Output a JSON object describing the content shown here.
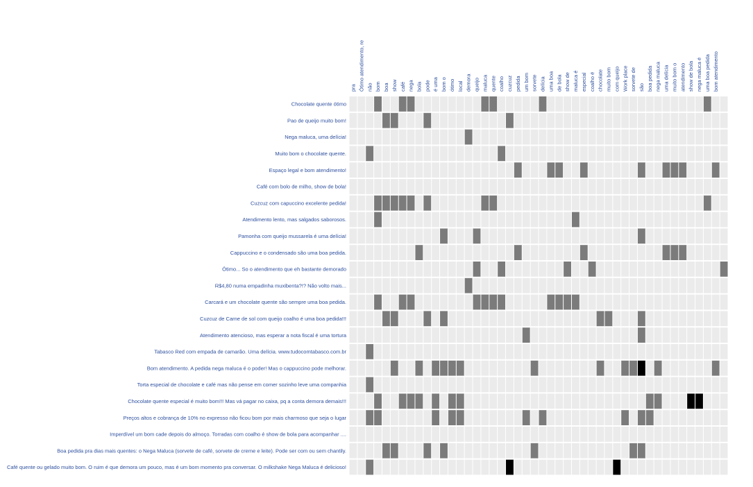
{
  "chart_data": {
    "type": "heatmap",
    "grid": true,
    "fill_colors": {
      "0": "#ebebeb",
      "1": "#7b7b7b",
      "2": "#000000"
    },
    "label_color": "#2d4f9e",
    "columns": [
      "pra",
      "Ótimo atendimento, re",
      "não",
      "bom",
      "boa",
      "show",
      "café",
      "nega",
      "bola",
      "pode",
      "é uma",
      "bom o",
      "ótimo",
      "local",
      "demora",
      "queijo",
      "maluca",
      "quente",
      "coalho",
      "cuzcuz",
      "pedida",
      "um bom",
      "sorvete",
      "delícia",
      "uma boa",
      "de bola",
      "show de",
      "maluca é",
      "especial",
      "coalho é",
      "chocolate",
      "muito bom",
      "com queijo",
      "Work place",
      "sorvete de",
      "são",
      "boa pedida",
      "nega maluca",
      "uma delícia",
      "muito bom o",
      "atendimento",
      "show de bola",
      "nega maluca é",
      "uma boa pedida",
      "bom atendimento",
      ""
    ],
    "rows": [
      {
        "label": "Chocolate quente ótimo",
        "hits": [
          [
            3,
            1
          ],
          [
            6,
            1
          ],
          [
            7,
            1
          ],
          [
            16,
            1
          ],
          [
            17,
            1
          ],
          [
            23,
            1
          ],
          [
            43,
            1
          ]
        ]
      },
      {
        "label": "Pao de queijo muito bom!",
        "hits": [
          [
            4,
            1
          ],
          [
            5,
            1
          ],
          [
            9,
            1
          ],
          [
            19,
            1
          ]
        ]
      },
      {
        "label": "Nega maluca, uma delícia!",
        "hits": [
          [
            14,
            1
          ]
        ]
      },
      {
        "label": "Muito bom o chocolate quente.",
        "hits": [
          [
            2,
            1
          ],
          [
            18,
            1
          ]
        ]
      },
      {
        "label": "Espaço legal e bom atendimento!",
        "hits": [
          [
            20,
            1
          ],
          [
            24,
            1
          ],
          [
            25,
            1
          ],
          [
            28,
            1
          ],
          [
            35,
            1
          ],
          [
            38,
            1
          ],
          [
            39,
            1
          ],
          [
            40,
            1
          ],
          [
            44,
            1
          ]
        ]
      },
      {
        "label": "Café com bolo de milho, show de bola!",
        "hits": []
      },
      {
        "label": "Cuzcuz com capuccino excelente pedida!",
        "hits": [
          [
            3,
            1
          ],
          [
            4,
            1
          ],
          [
            5,
            1
          ],
          [
            6,
            1
          ],
          [
            7,
            1
          ],
          [
            9,
            1
          ],
          [
            16,
            1
          ],
          [
            17,
            1
          ],
          [
            43,
            1
          ]
        ]
      },
      {
        "label": "Atendimento lento, mas salgados saborosos.",
        "hits": [
          [
            3,
            1
          ],
          [
            27,
            1
          ]
        ]
      },
      {
        "label": "Pamonha com queijo mussarela é uma delícia!",
        "hits": [
          [
            11,
            1
          ],
          [
            15,
            1
          ],
          [
            35,
            1
          ]
        ]
      },
      {
        "label": "Cappuccino e o condensado são uma boa pedida.",
        "hits": [
          [
            8,
            1
          ],
          [
            20,
            1
          ],
          [
            28,
            1
          ],
          [
            38,
            1
          ],
          [
            39,
            1
          ],
          [
            40,
            1
          ]
        ]
      },
      {
        "label": "Ótimo... So o atendimento que eh bastante demorado",
        "hits": [
          [
            15,
            1
          ],
          [
            18,
            1
          ],
          [
            26,
            1
          ],
          [
            29,
            1
          ],
          [
            45,
            1
          ]
        ]
      },
      {
        "label": "R$4,80 numa empadinha muxibenta?!? Não volto mais...",
        "hits": [
          [
            14,
            1
          ]
        ]
      },
      {
        "label": "Carcará e um chocolate quente são sempre uma boa pedida.",
        "hits": [
          [
            3,
            1
          ],
          [
            6,
            1
          ],
          [
            7,
            1
          ],
          [
            15,
            1
          ],
          [
            16,
            1
          ],
          [
            17,
            1
          ],
          [
            18,
            1
          ],
          [
            24,
            1
          ],
          [
            25,
            1
          ],
          [
            26,
            1
          ],
          [
            27,
            1
          ]
        ]
      },
      {
        "label": "Cuzcuz de Carne de sol com queijo coalho é uma boa pedida!!!",
        "hits": [
          [
            4,
            1
          ],
          [
            5,
            1
          ],
          [
            9,
            1
          ],
          [
            11,
            1
          ],
          [
            30,
            1
          ],
          [
            31,
            1
          ],
          [
            35,
            1
          ]
        ]
      },
      {
        "label": "Atendimento atencioso, mas esperar a nota fiscal é uma tortura",
        "hits": [
          [
            21,
            1
          ],
          [
            35,
            1
          ]
        ]
      },
      {
        "label": "Tabasco Red com empada de camarão. Uma delícia. www.tudocomtabasco.com.br",
        "hits": [
          [
            2,
            1
          ]
        ]
      },
      {
        "label": "Bom atendimento. A pedida nega maluca é o poder! Mas o cappuccino pode melhorar.",
        "hits": [
          [
            5,
            1
          ],
          [
            8,
            1
          ],
          [
            10,
            1
          ],
          [
            11,
            1
          ],
          [
            12,
            1
          ],
          [
            13,
            1
          ],
          [
            22,
            1
          ],
          [
            30,
            1
          ],
          [
            33,
            1
          ],
          [
            34,
            1
          ],
          [
            35,
            2
          ],
          [
            37,
            1
          ],
          [
            44,
            1
          ]
        ]
      },
      {
        "label": "Torta especial de chocolate e café mas não pense em comer sozinho leve uma companhia",
        "hits": [
          [
            2,
            1
          ]
        ]
      },
      {
        "label": "Chocolate quente especial é muito bom!!! Mas vá pagar no caixa, pq a conta demora demais!!!",
        "hits": [
          [
            3,
            1
          ],
          [
            6,
            1
          ],
          [
            7,
            1
          ],
          [
            8,
            1
          ],
          [
            10,
            1
          ],
          [
            12,
            1
          ],
          [
            13,
            1
          ],
          [
            36,
            1
          ],
          [
            37,
            1
          ],
          [
            41,
            2
          ],
          [
            42,
            2
          ]
        ]
      },
      {
        "label": "Preços altos e cobrança de 10% no expresso não ficou bom por mais charmoso que seja o lugar",
        "hits": [
          [
            2,
            1
          ],
          [
            3,
            1
          ],
          [
            10,
            1
          ],
          [
            12,
            1
          ],
          [
            13,
            1
          ],
          [
            21,
            1
          ],
          [
            23,
            1
          ],
          [
            33,
            1
          ],
          [
            35,
            1
          ],
          [
            36,
            1
          ]
        ]
      },
      {
        "label": "Imperdível um bom cade depois do almoço. Torradas com coalho é show de bola para acompanhar ....",
        "hits": []
      },
      {
        "label": "Boa pedida pra dias mais quentes: o Nega Maluca (sorvete de café, sorvete de creme e leite). Pode ser com ou sem chantily.",
        "hits": [
          [
            4,
            1
          ],
          [
            5,
            1
          ],
          [
            9,
            1
          ],
          [
            11,
            1
          ],
          [
            22,
            1
          ],
          [
            34,
            1
          ],
          [
            35,
            1
          ]
        ]
      },
      {
        "label": "Café quente ou gelado muito bom. O ruim é que demora um pouco, mas é um bom momento pra conversar. O milkshake Nega Maluca é delicioso!",
        "hits": [
          [
            2,
            1
          ],
          [
            19,
            2
          ],
          [
            32,
            2
          ]
        ]
      }
    ]
  }
}
